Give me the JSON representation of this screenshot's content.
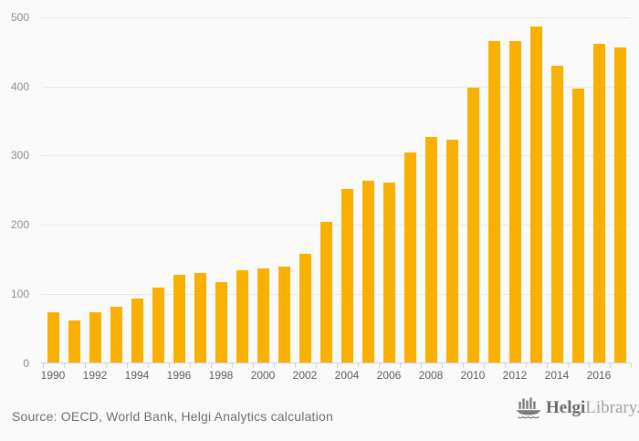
{
  "chart_data": {
    "type": "bar",
    "x": [
      1990,
      1991,
      1992,
      1993,
      1994,
      1995,
      1996,
      1997,
      1998,
      1999,
      2000,
      2001,
      2002,
      2003,
      2004,
      2005,
      2006,
      2007,
      2008,
      2009,
      2010,
      2011,
      2012,
      2013,
      2014,
      2015,
      2016,
      2017
    ],
    "values": [
      73,
      62,
      73,
      81,
      93,
      109,
      127,
      130,
      117,
      134,
      137,
      139,
      158,
      204,
      251,
      263,
      261,
      305,
      327,
      323,
      398,
      465,
      465,
      487,
      430,
      397,
      462,
      456
    ],
    "title": "",
    "xlabel": "",
    "ylabel": "",
    "ylim": [
      0,
      500
    ],
    "yticks": [
      0,
      100,
      200,
      300,
      400,
      500
    ],
    "ytick_labels": [
      "0",
      "100",
      "200",
      "300",
      "400",
      "500"
    ],
    "xtick_labels": [
      "1990",
      "1992",
      "1994",
      "1996",
      "1998",
      "2000",
      "2002",
      "2004",
      "2006",
      "2008",
      "2010",
      "2012",
      "2014",
      "2016"
    ],
    "grid": "horizontal-only",
    "legend": "none",
    "colors": {
      "bar": "#fab000",
      "background": "#fafafa",
      "gridline": "#e9e9e9",
      "axis_line": "#ccd3de",
      "tick": "#ccd3de",
      "ytick_label": "#8e8e8e",
      "xtick_label": "#5f5f5f"
    }
  },
  "footer": {
    "source": "Source: OECD, World Bank, Helgi Analytics calculation",
    "logo": {
      "brand_bold": "Helgi",
      "brand_light": "Library."
    }
  }
}
